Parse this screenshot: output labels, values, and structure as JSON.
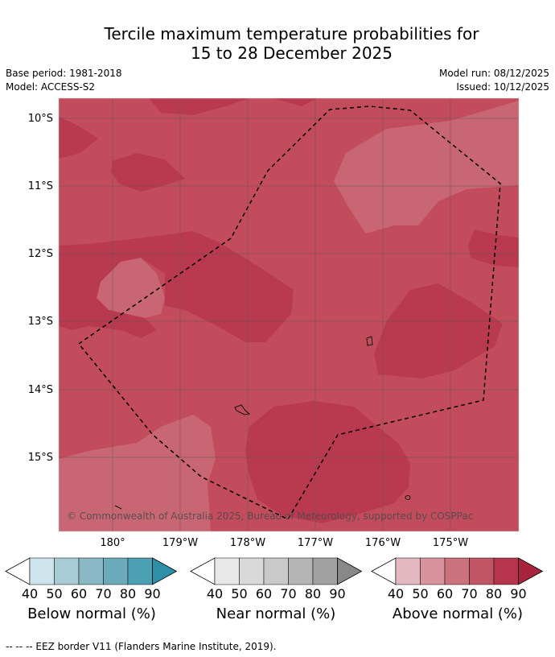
{
  "title": {
    "line1": "Tercile maximum temperature probabilities for",
    "line2": "15 to 28 December 2025"
  },
  "meta": {
    "base_period": "Base period: 1981-2018",
    "model": "Model: ACCESS-S2",
    "model_run": "Model run: 08/12/2025",
    "issued": "Issued: 10/12/2025"
  },
  "map": {
    "lat_labels": [
      "10°S",
      "11°S",
      "12°S",
      "13°S",
      "14°S",
      "15°S"
    ],
    "lon_labels": [
      "180°",
      "179°W",
      "178°W",
      "177°W",
      "176°W",
      "175°W"
    ],
    "copyright": "© Commonwealth of Australia 2025, Bureau of Meteorology, supported by COSPPac"
  },
  "legends": [
    {
      "label": "Below normal (%)",
      "ticks": [
        "40",
        "50",
        "60",
        "70",
        "80",
        "90"
      ],
      "colors": [
        "#ffffff",
        "#cde4ec",
        "#a9cbd5",
        "#89b8c6",
        "#6aaabb",
        "#4ba0b4",
        "#2f8fa6"
      ]
    },
    {
      "label": "Near normal (%)",
      "ticks": [
        "40",
        "50",
        "60",
        "70",
        "80",
        "90"
      ],
      "colors": [
        "#ffffff",
        "#e8e8e8",
        "#d9d9d9",
        "#c9c9c9",
        "#b5b5b5",
        "#a1a1a1",
        "#888888"
      ]
    },
    {
      "label": "Above normal (%)",
      "ticks": [
        "40",
        "50",
        "60",
        "70",
        "80",
        "90"
      ],
      "colors": [
        "#ffffff",
        "#e3b8c0",
        "#d8939d",
        "#cc727d",
        "#c15563",
        "#b7354c",
        "#a8243d"
      ]
    }
  ],
  "footer": "--  --  -- EEZ border V11 (Flanders Marine Institute, 2019)."
}
